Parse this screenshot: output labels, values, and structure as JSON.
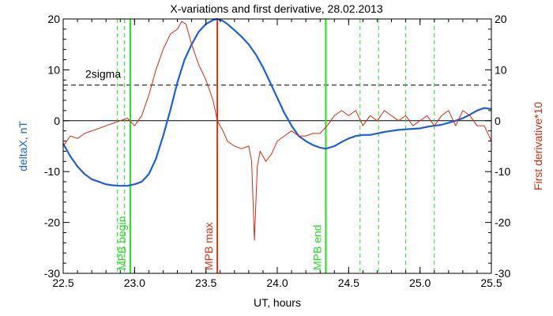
{
  "chart_data": {
    "type": "line",
    "title": "X-variations and first derivative, 28.02.2013",
    "xlabel": "UT, hours",
    "ylabel_left": "deltaX, nT",
    "ylabel_right": "First derivative*10",
    "xlim": [
      22.5,
      25.5
    ],
    "ylim": [
      -30,
      20
    ],
    "x_ticks": [
      22.5,
      23.0,
      23.5,
      24.0,
      24.5,
      25.0,
      25.5
    ],
    "x_tick_labels": [
      "22.5",
      "23.0",
      "23.5",
      "24.0",
      "24.5",
      "25.0",
      "25.5"
    ],
    "y_ticks": [
      -30,
      -20,
      -10,
      0,
      10,
      20
    ],
    "y_tick_labels": [
      "-30",
      "-20",
      "-10",
      "0",
      "10",
      "20"
    ],
    "grid": false,
    "colors": {
      "deltaX": "#1f5fd9",
      "derivative": "#d42a12",
      "mpb_begin_end": "#22dd22",
      "mpb_max": "#e03010",
      "guides": "#000000"
    },
    "series": [
      {
        "key": "deltaX",
        "axis": "left",
        "x": [
          22.5,
          22.55,
          22.6,
          22.65,
          22.7,
          22.75,
          22.8,
          22.85,
          22.9,
          22.95,
          23.0,
          23.05,
          23.1,
          23.15,
          23.2,
          23.25,
          23.3,
          23.35,
          23.4,
          23.45,
          23.5,
          23.55,
          23.58,
          23.62,
          23.65,
          23.7,
          23.75,
          23.8,
          23.85,
          23.9,
          23.95,
          24.0,
          24.05,
          24.1,
          24.15,
          24.2,
          24.25,
          24.3,
          24.34,
          24.4,
          24.45,
          24.5,
          24.55,
          24.6,
          24.65,
          24.7,
          24.75,
          24.8,
          24.85,
          24.9,
          24.95,
          25.0,
          25.05,
          25.1,
          25.15,
          25.2,
          25.25,
          25.3,
          25.35,
          25.4,
          25.45,
          25.5
        ],
        "y": [
          -4.5,
          -7,
          -9,
          -10.5,
          -11.5,
          -12,
          -12.5,
          -12.7,
          -12.8,
          -12.8,
          -12.5,
          -12,
          -10.5,
          -7.5,
          -3,
          2,
          7.5,
          12,
          15,
          17.5,
          19,
          19.8,
          20,
          19.6,
          19,
          17.8,
          16.5,
          15,
          13,
          10.5,
          7.5,
          4.5,
          1.5,
          -1,
          -3,
          -4,
          -4.8,
          -5.3,
          -5.5,
          -5,
          -4.2,
          -3.5,
          -3,
          -2.8,
          -2.8,
          -2.5,
          -2.2,
          -2,
          -1.8,
          -1.7,
          -1.6,
          -1.5,
          -1.2,
          -1,
          -0.8,
          -0.4,
          0,
          0.5,
          1.2,
          2,
          2.5,
          2.3
        ]
      },
      {
        "key": "derivative",
        "axis": "right",
        "x": [
          22.5,
          22.55,
          22.6,
          22.65,
          22.7,
          22.75,
          22.8,
          22.85,
          22.9,
          22.95,
          23.0,
          23.05,
          23.1,
          23.15,
          23.2,
          23.25,
          23.3,
          23.33,
          23.36,
          23.4,
          23.45,
          23.5,
          23.55,
          23.58,
          23.62,
          23.65,
          23.7,
          23.75,
          23.8,
          23.82,
          23.84,
          23.86,
          23.88,
          23.92,
          23.96,
          24.0,
          24.05,
          24.1,
          24.15,
          24.2,
          24.25,
          24.3,
          24.35,
          24.4,
          24.45,
          24.5,
          24.55,
          24.6,
          24.65,
          24.7,
          24.75,
          24.8,
          24.85,
          24.9,
          24.95,
          25.0,
          25.05,
          25.1,
          25.15,
          25.2,
          25.25,
          25.3,
          25.35,
          25.4,
          25.45,
          25.5
        ],
        "y": [
          -5,
          -3,
          -3.5,
          -2.5,
          -2,
          -1.5,
          -1,
          -0.5,
          0,
          0.5,
          -1,
          1,
          5,
          10,
          14,
          17,
          18,
          19.5,
          19,
          15,
          11,
          8,
          4,
          0,
          -2,
          -4,
          -5,
          -5.5,
          -5,
          -8,
          -23.5,
          -9,
          -6,
          -8,
          -6.5,
          -4,
          -3,
          -2,
          -3,
          -3,
          -2.5,
          -2.5,
          -1,
          1,
          2,
          1,
          2,
          -1,
          1,
          0,
          2,
          1,
          0,
          1,
          -1,
          0,
          1,
          -1,
          1,
          2,
          -1,
          2,
          1,
          -1,
          -1,
          -4
        ]
      }
    ],
    "reference_lines": [
      {
        "type": "horizontal",
        "y": 0,
        "style": "solid",
        "label": ""
      },
      {
        "type": "horizontal",
        "y": 7,
        "style": "dashed",
        "label": "2sigma"
      }
    ],
    "vertical_markers": [
      {
        "x": 22.97,
        "style": "solid",
        "color_key": "mpb_begin_end",
        "label": "MPB begin"
      },
      {
        "x": 23.58,
        "style": "solid",
        "color_key": "mpb_max",
        "label": "MPB max"
      },
      {
        "x": 24.34,
        "style": "solid",
        "color_key": "mpb_begin_end",
        "label": "MPB end"
      },
      {
        "x": 22.88,
        "style": "dashed",
        "color_key": "mpb_begin_end",
        "label": ""
      },
      {
        "x": 22.93,
        "style": "dashed",
        "color_key": "mpb_begin_end",
        "label": ""
      },
      {
        "x": 24.58,
        "style": "dashed",
        "color_key": "mpb_begin_end",
        "label": ""
      },
      {
        "x": 24.71,
        "style": "dashed",
        "color_key": "mpb_begin_end",
        "label": ""
      },
      {
        "x": 24.9,
        "style": "dashed",
        "color_key": "mpb_begin_end",
        "label": ""
      },
      {
        "x": 25.1,
        "style": "dashed",
        "color_key": "mpb_begin_end",
        "label": ""
      }
    ]
  }
}
